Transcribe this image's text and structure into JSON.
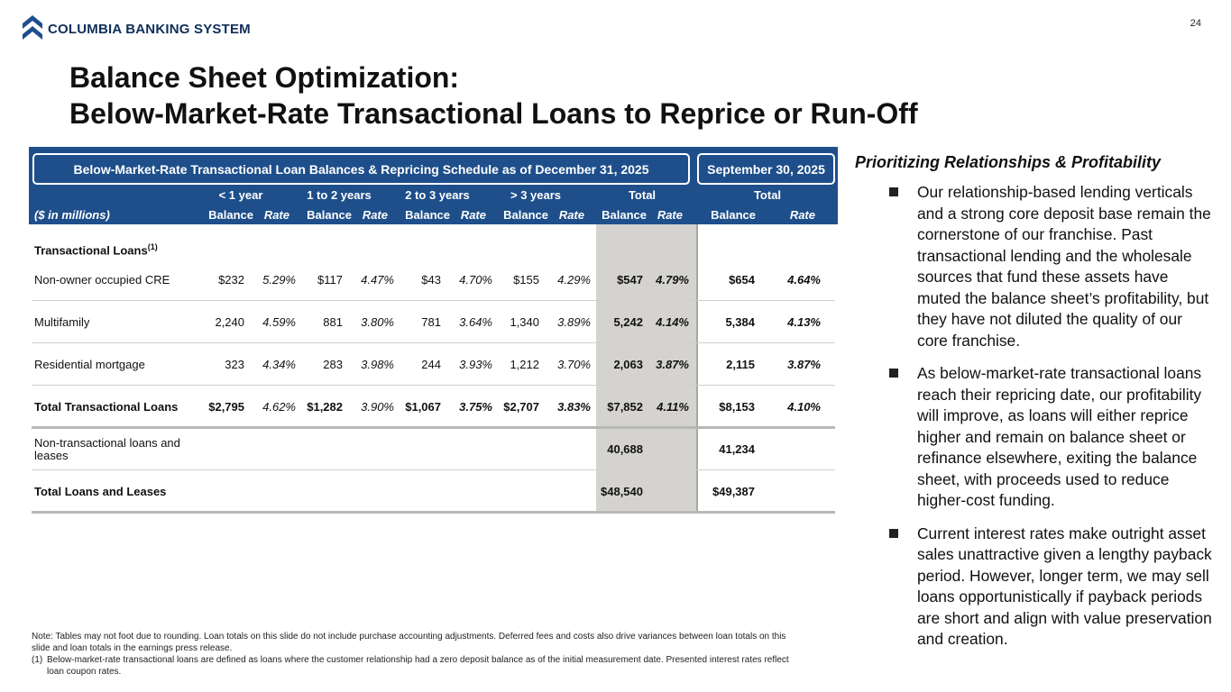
{
  "header": {
    "brand": "COLUMBIA BANKING SYSTEM",
    "page_number": "24",
    "title_line1": "Balance Sheet Optimization:",
    "title_line2": "Below-Market-Rate Transactional Loans to Reprice or Run-Off"
  },
  "table": {
    "main_title": "Below-Market-Rate Transactional Loan Balances & Repricing Schedule as of December 31, 2025",
    "side_title": "September 30, 2025",
    "units_label": "($ in millions)",
    "groups": [
      "< 1 year",
      "1 to 2 years",
      "2 to 3 years",
      "> 3 years",
      "Total",
      "Total"
    ],
    "balance_label": "Balance",
    "rate_label": "Rate",
    "section_label": "Transactional Loans",
    "section_sup": "(1)",
    "rows": [
      {
        "label": "Non-owner occupied CRE",
        "b1": "$232",
        "r1": "5.29%",
        "b2": "$117",
        "r2": "4.47%",
        "b3": "$43",
        "r3": "4.70%",
        "b4": "$155",
        "r4": "4.29%",
        "bt": "$547",
        "rt": "4.79%",
        "bs": "$654",
        "rs": "4.64%"
      },
      {
        "label": "Multifamily",
        "b1": "2,240",
        "r1": "4.59%",
        "b2": "881",
        "r2": "3.80%",
        "b3": "781",
        "r3": "3.64%",
        "b4": "1,340",
        "r4": "3.89%",
        "bt": "5,242",
        "rt": "4.14%",
        "bs": "5,384",
        "rs": "4.13%"
      },
      {
        "label": "Residential mortgage",
        "b1": "323",
        "r1": "4.34%",
        "b2": "283",
        "r2": "3.98%",
        "b3": "244",
        "r3": "3.93%",
        "b4": "1,212",
        "r4": "3.70%",
        "bt": "2,063",
        "rt": "3.87%",
        "bs": "2,115",
        "rs": "3.87%"
      },
      {
        "label": "Total Transactional Loans",
        "b1": "$2,795",
        "r1": "4.62%",
        "b2": "$1,282",
        "r2": "3.90%",
        "b3": "$1,067",
        "r3": "3.75%",
        "b4": "$2,707",
        "r4": "3.83%",
        "bt": "$7,852",
        "rt": "4.11%",
        "bs": "$8,153",
        "rs": "4.10%"
      }
    ],
    "non_transactional": {
      "label_line1": "Non-transactional loans and",
      "label_line2": "leases",
      "bt": "40,688",
      "bs": "41,234"
    },
    "total_loans": {
      "label": "Total Loans and Leases",
      "bt": "$48,540",
      "bs": "$49,387"
    }
  },
  "notes": {
    "note_line1": "Note: Tables may not foot due to rounding. Loan totals on this slide do not include purchase accounting adjustments. Deferred fees and costs also drive variances between loan totals on this",
    "note_line2": "slide and loan totals in the earnings press release.",
    "fn_num": "(1)",
    "fn_line1": "Below-market-rate transactional loans are defined as loans where the customer relationship had a zero deposit balance as of the initial measurement date. Presented interest rates reflect",
    "fn_line2": "loan coupon rates."
  },
  "side": {
    "heading": "Prioritizing Relationships & Profitability",
    "bullets": [
      "Our relationship-based lending verticals and a strong core deposit base remain the cornerstone of our franchise. Past transactional lending and the wholesale sources that fund these assets have muted the balance sheet’s profitability, but they have not diluted the quality of our core franchise.",
      "As below-market-rate transactional loans reach their repricing date, our profitability will improve, as loans will either reprice higher and remain on balance sheet or refinance elsewhere, exiting the balance sheet, with proceeds used to reduce higher-cost funding.",
      "Current interest rates make outright asset sales unattractive given a lengthy payback period. However, longer term, we may sell loans opportunistically if payback periods are short and align with value preservation and creation."
    ]
  },
  "colors": {
    "navy": "#1e4f8b",
    "brand": "#0f2f5a",
    "gray_col": "#d5d3d0"
  }
}
